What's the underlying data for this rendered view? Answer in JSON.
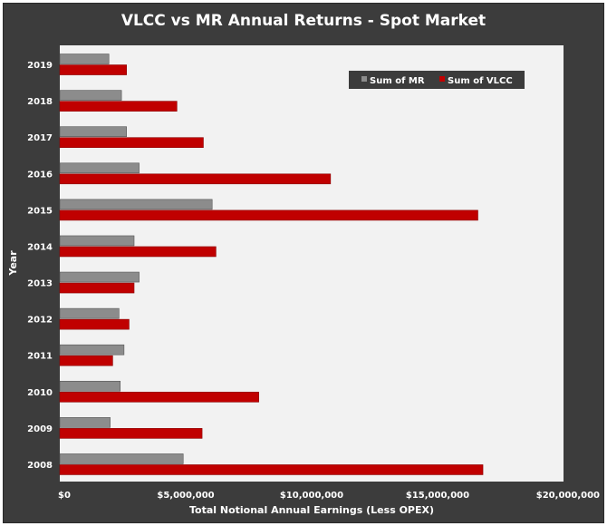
{
  "chart_data": {
    "type": "bar",
    "orientation": "horizontal",
    "title": "VLCC vs MR Annual Returns - Spot Market",
    "xlabel": "Total Notional Annual Earnings (Less OPEX)",
    "ylabel": "Year",
    "xlim": [
      0,
      20000000
    ],
    "x_ticks": [
      "$0",
      "$5,000,000",
      "$10,000,000",
      "$15,000,000",
      "$20,000,000"
    ],
    "x_tick_values": [
      0,
      5000000,
      10000000,
      15000000,
      20000000
    ],
    "categories": [
      "2019",
      "2018",
      "2017",
      "2016",
      "2015",
      "2014",
      "2013",
      "2012",
      "2011",
      "2010",
      "2009",
      "2008"
    ],
    "series": [
      {
        "name": "Sum of MR",
        "color": "#8c8c8c",
        "values": [
          1950000,
          2450000,
          2650000,
          3150000,
          6050000,
          2950000,
          3150000,
          2350000,
          2550000,
          2400000,
          2000000,
          4900000
        ]
      },
      {
        "name": "Sum of VLCC",
        "color": "#c00000",
        "values": [
          2650000,
          4650000,
          5700000,
          10750000,
          16600000,
          6200000,
          2950000,
          2750000,
          2100000,
          7900000,
          5650000,
          16800000
        ]
      }
    ],
    "grid": false,
    "legend_position": "top-right"
  }
}
